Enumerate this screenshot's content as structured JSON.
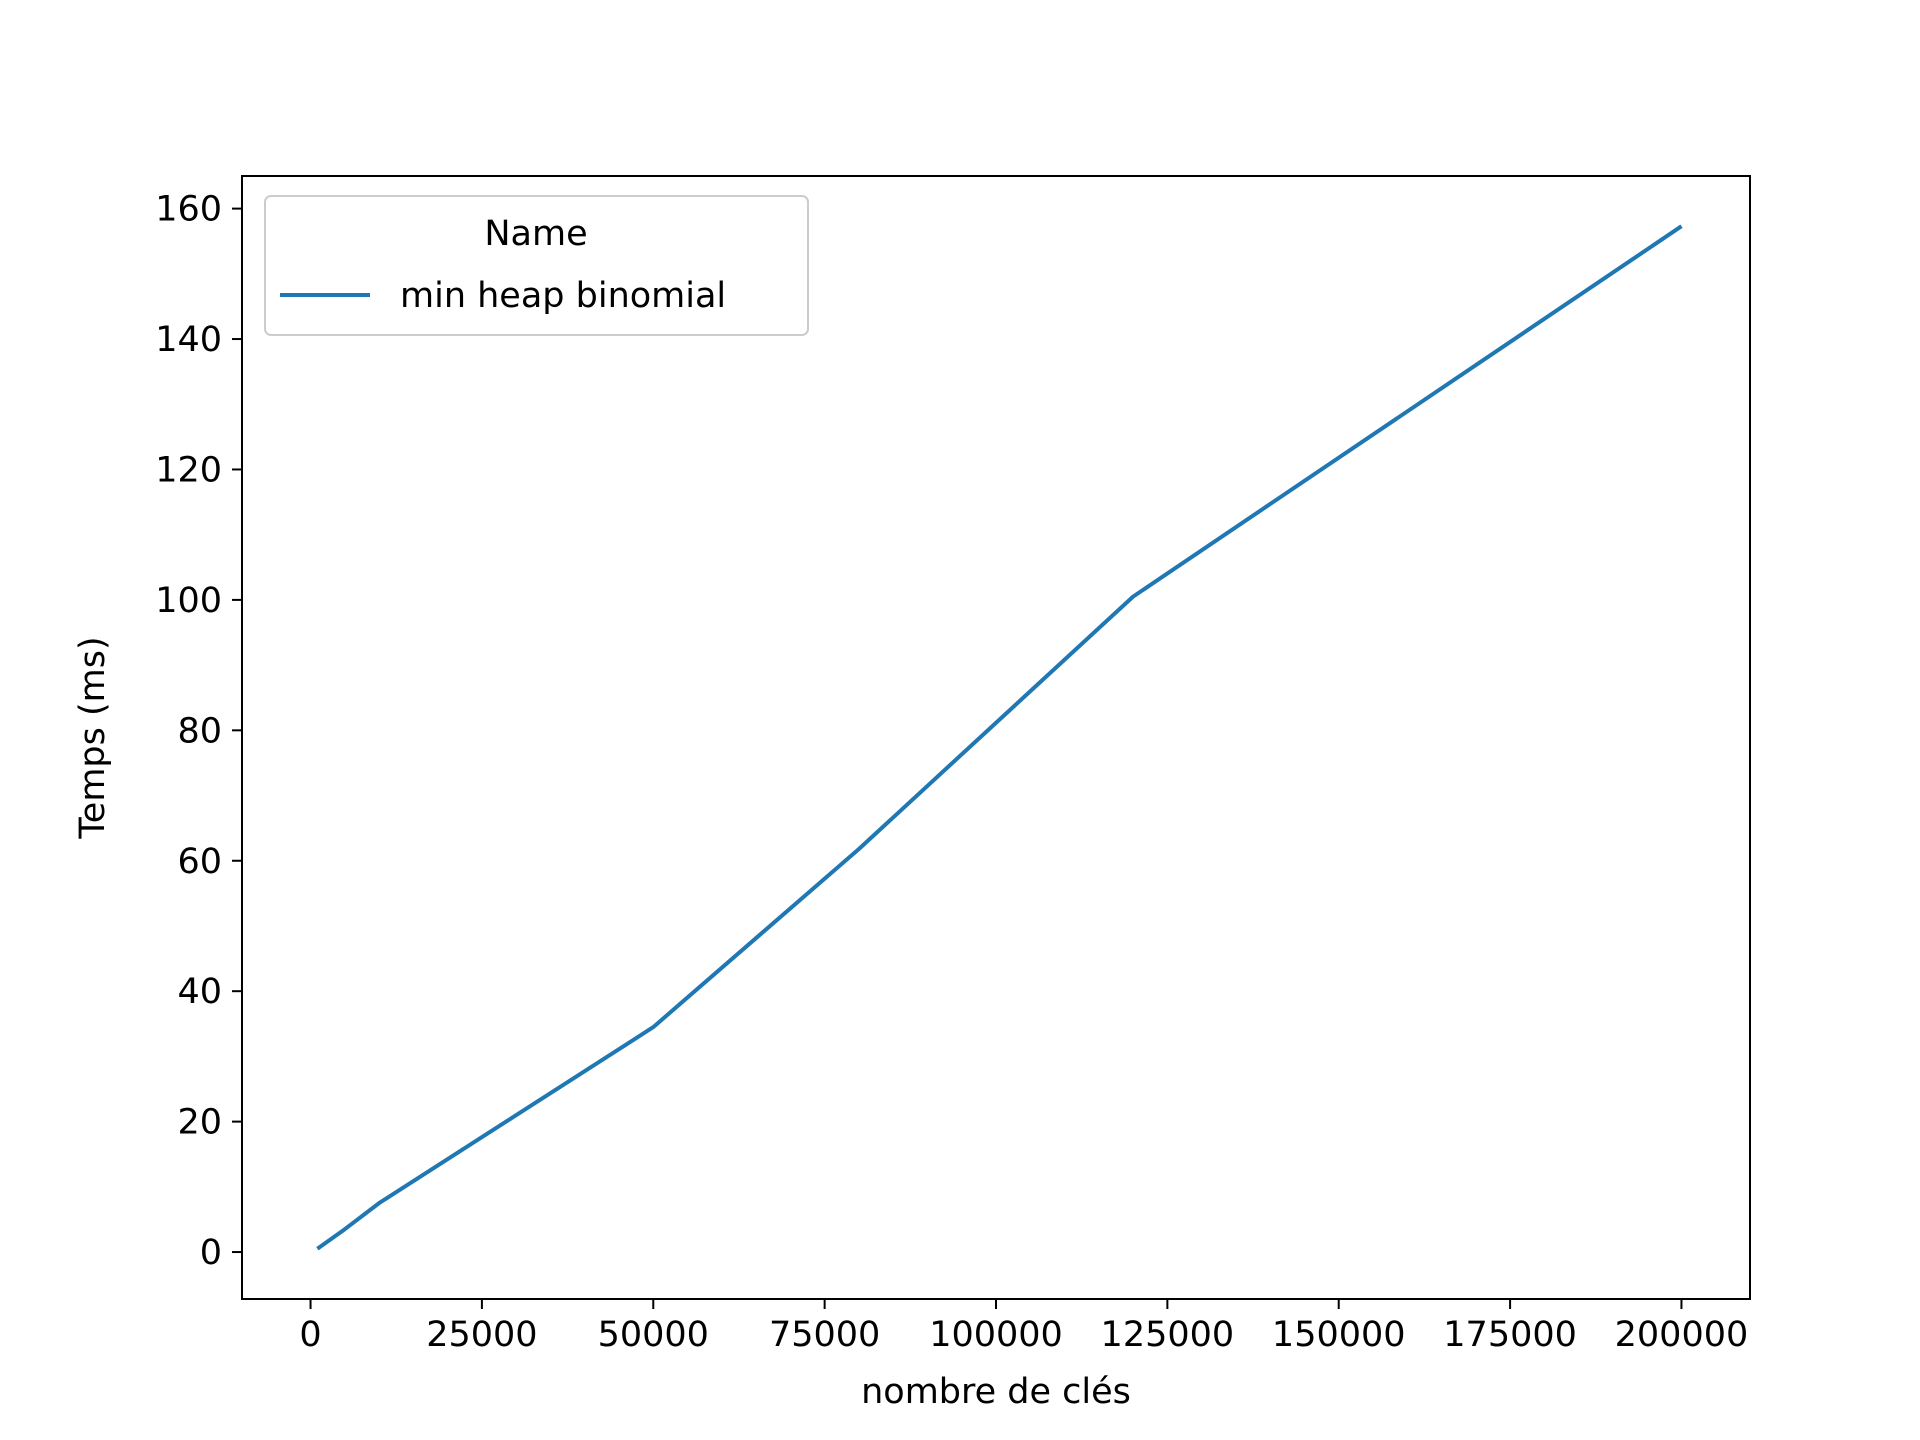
{
  "chart_data": {
    "type": "line",
    "title": "",
    "xlabel": "nombre de clés",
    "ylabel": "Temps (ms)",
    "xlim": [
      -10000,
      210000
    ],
    "ylim": [
      -7.2,
      165
    ],
    "xticks": [
      0,
      25000,
      50000,
      75000,
      100000,
      125000,
      150000,
      175000,
      200000
    ],
    "yticks": [
      0,
      20,
      40,
      60,
      80,
      100,
      120,
      140,
      160
    ],
    "grid": false,
    "legend": {
      "title": "Name",
      "placement": "top-left"
    },
    "series": [
      {
        "name": "min heap binomial",
        "color": "#1f77b4",
        "x": [
          1000,
          5000,
          10000,
          50000,
          80000,
          120000,
          200000
        ],
        "y": [
          0.5,
          3.5,
          7.5,
          34.5,
          61.8,
          100.5,
          157.3
        ]
      }
    ]
  }
}
